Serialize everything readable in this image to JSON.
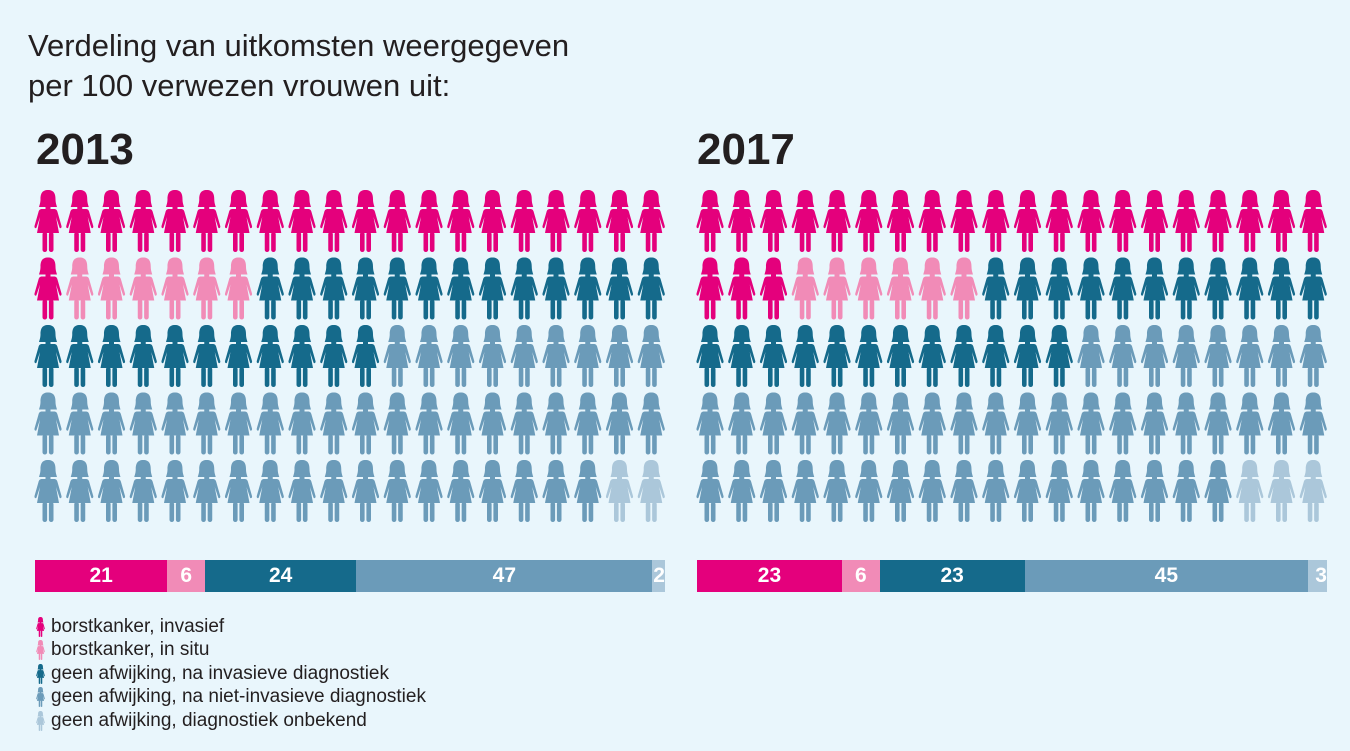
{
  "title_line1": "Verdeling van uitkomsten weergegeven",
  "title_line2": "per 100 verwezen vrouwen uit:",
  "categories": [
    {
      "label": "borstkanker, invasief",
      "color": "#e4007c",
      "icon": "woman-icon"
    },
    {
      "label": "borstkanker, in situ",
      "color": "#f18bb7",
      "icon": "woman-icon"
    },
    {
      "label": "geen afwijking, na invasieve diagnostiek",
      "color": "#156a8b",
      "icon": "woman-icon"
    },
    {
      "label": "geen afwijking, na niet-invasieve diagnostiek",
      "color": "#6b9bb9",
      "icon": "woman-icon"
    },
    {
      "label": "geen afwijking, diagnostiek onbekend",
      "color": "#abc7da",
      "icon": "woman-icon"
    }
  ],
  "chart_data": [
    {
      "type": "pictogram",
      "title": "2013",
      "total": 100,
      "series": [
        {
          "name": "borstkanker, invasief",
          "value": 21
        },
        {
          "name": "borstkanker, in situ",
          "value": 6
        },
        {
          "name": "geen afwijking, na invasieve diagnostiek",
          "value": 24
        },
        {
          "name": "geen afwijking, na niet-invasieve diagnostiek",
          "value": 47
        },
        {
          "name": "geen afwijking, diagnostiek onbekend",
          "value": 2
        }
      ],
      "labels": [
        "21",
        "6",
        "24",
        "47",
        "2"
      ]
    },
    {
      "type": "pictogram",
      "title": "2017",
      "total": 100,
      "series": [
        {
          "name": "borstkanker, invasief",
          "value": 23
        },
        {
          "name": "borstkanker, in situ",
          "value": 6
        },
        {
          "name": "geen afwijking, na invasieve diagnostiek",
          "value": 23
        },
        {
          "name": "geen afwijking, na niet-invasieve diagnostiek",
          "value": 45
        },
        {
          "name": "geen afwijking, diagnostiek onbekend",
          "value": 3
        }
      ],
      "labels": [
        "23",
        "6",
        "23",
        "45",
        "3"
      ]
    }
  ]
}
